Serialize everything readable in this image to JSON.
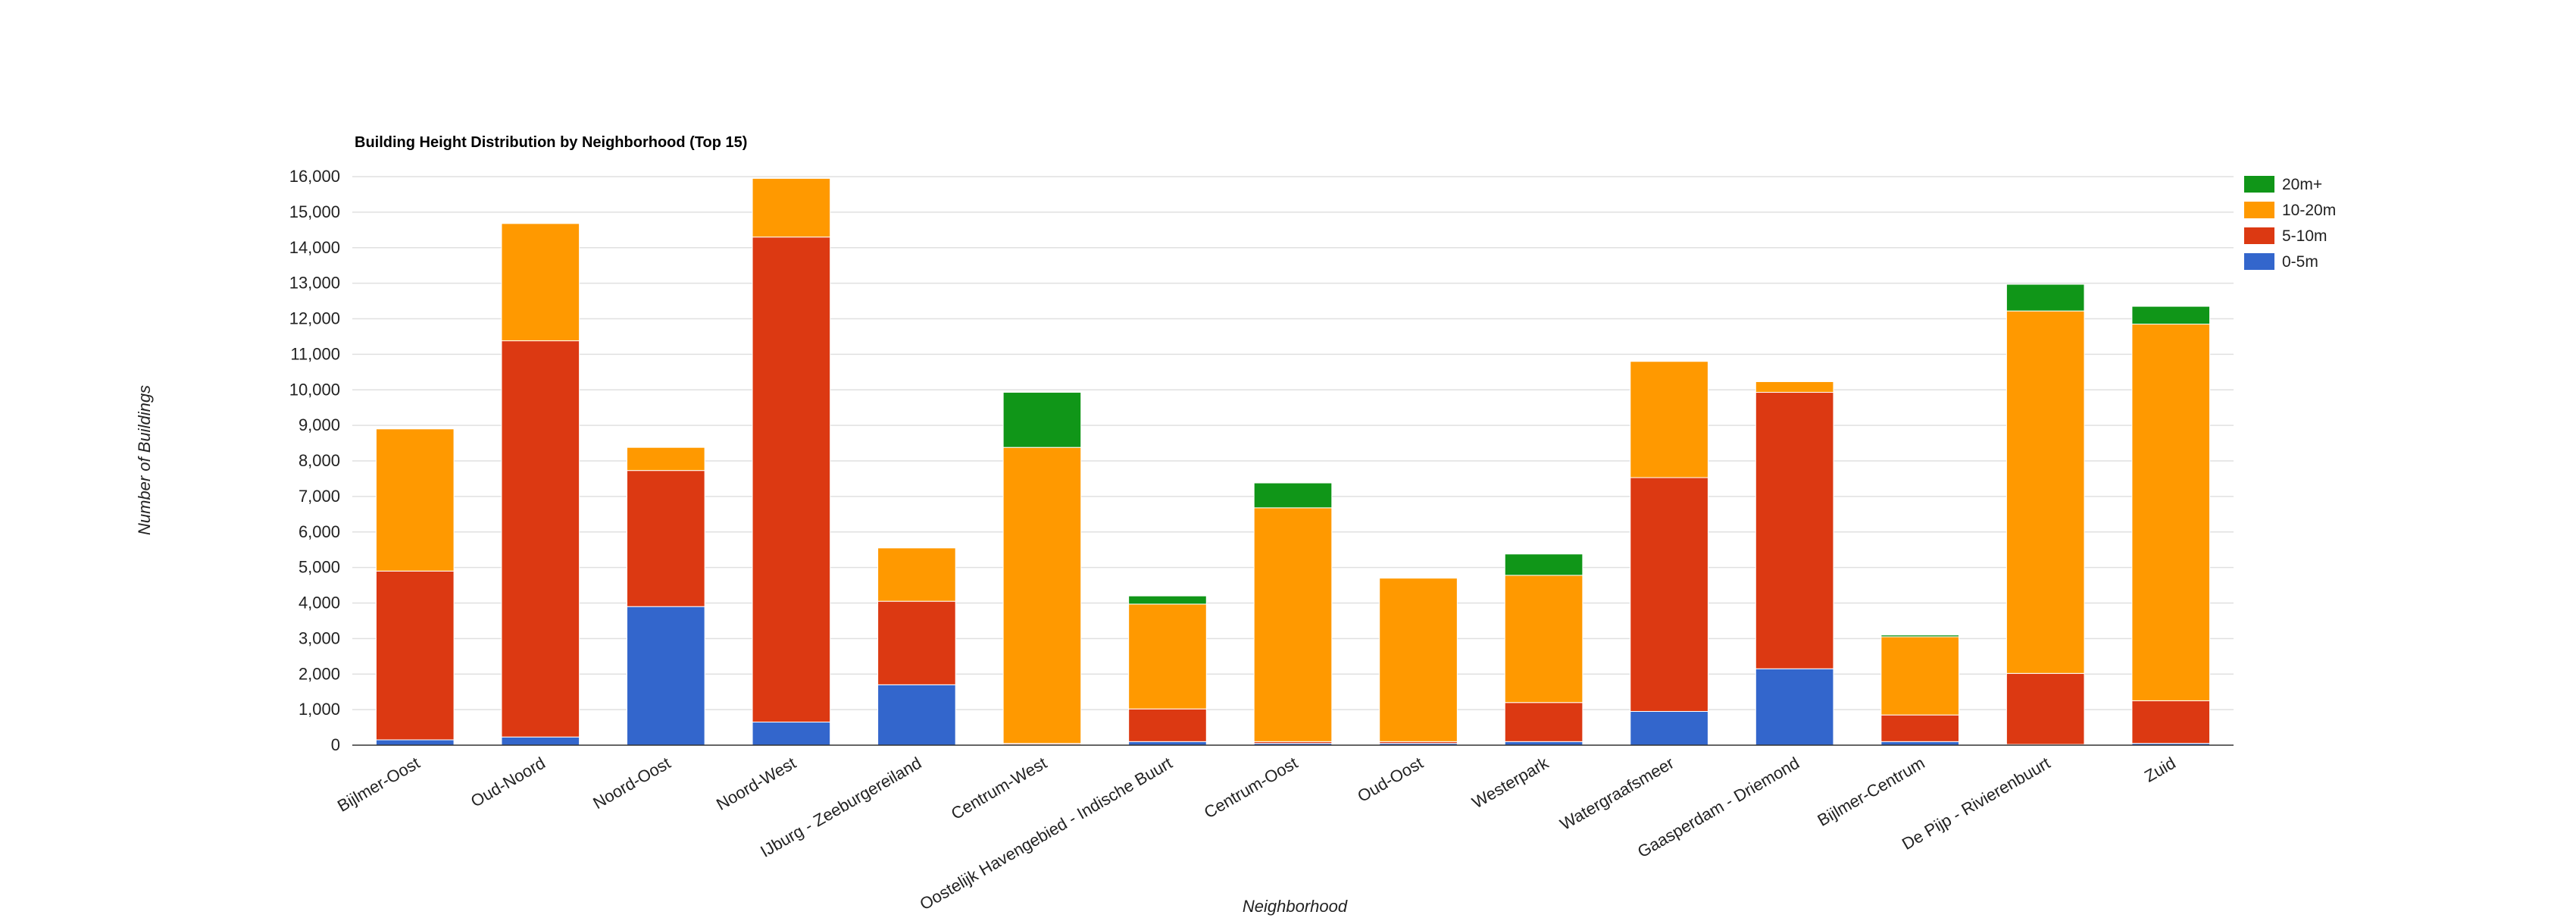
{
  "chart_data": {
    "type": "bar",
    "stacked": true,
    "title": "Building Height Distribution by Neighborhood (Top 15)",
    "xlabel": "Neighborhood",
    "ylabel": "Number of Buildings",
    "ylim": [
      0,
      16000
    ],
    "yticks": [
      0,
      1000,
      2000,
      3000,
      4000,
      5000,
      6000,
      7000,
      8000,
      9000,
      10000,
      11000,
      12000,
      13000,
      14000,
      15000,
      16000
    ],
    "ytick_labels": [
      "0",
      "1,000",
      "2,000",
      "3,000",
      "4,000",
      "5,000",
      "6,000",
      "7,000",
      "8,000",
      "9,000",
      "10,000",
      "11,000",
      "12,000",
      "13,000",
      "14,000",
      "15,000",
      "16,000"
    ],
    "grid": true,
    "legend_position": "right",
    "categories": [
      "Bijlmer-Oost",
      "Oud-Noord",
      "Noord-Oost",
      "Noord-West",
      "IJburg - Zeeburgereiland",
      "Centrum-West",
      "Oostelijk Havengebied - Indische Buurt",
      "Centrum-Oost",
      "Oud-Oost",
      "Westerpark",
      "Watergraafsmeer",
      "Gaasperdam - Driemond",
      "Bijlmer-Centrum",
      "De Pijp - Rivierenbuurt",
      "Zuid"
    ],
    "series": [
      {
        "name": "0-5m",
        "color": "#3366cc",
        "values": [
          150,
          230,
          3900,
          650,
          1700,
          20,
          100,
          50,
          50,
          100,
          950,
          2150,
          100,
          20,
          50
        ]
      },
      {
        "name": "5-10m",
        "color": "#dc3912",
        "values": [
          4750,
          11150,
          3830,
          13650,
          2350,
          30,
          920,
          50,
          50,
          1100,
          6580,
          7780,
          750,
          2000,
          1200
        ]
      },
      {
        "name": "10-20m",
        "color": "#ff9900",
        "values": [
          4000,
          3300,
          650,
          1650,
          1500,
          8330,
          2950,
          6580,
          4600,
          3580,
          3270,
          300,
          2200,
          10200,
          10600
        ]
      },
      {
        "name": "20m+",
        "color": "#109618",
        "values": [
          0,
          0,
          0,
          0,
          0,
          1550,
          230,
          700,
          0,
          600,
          0,
          0,
          50,
          750,
          500
        ]
      }
    ],
    "legend_order": [
      "20m+",
      "10-20m",
      "5-10m",
      "0-5m"
    ]
  }
}
